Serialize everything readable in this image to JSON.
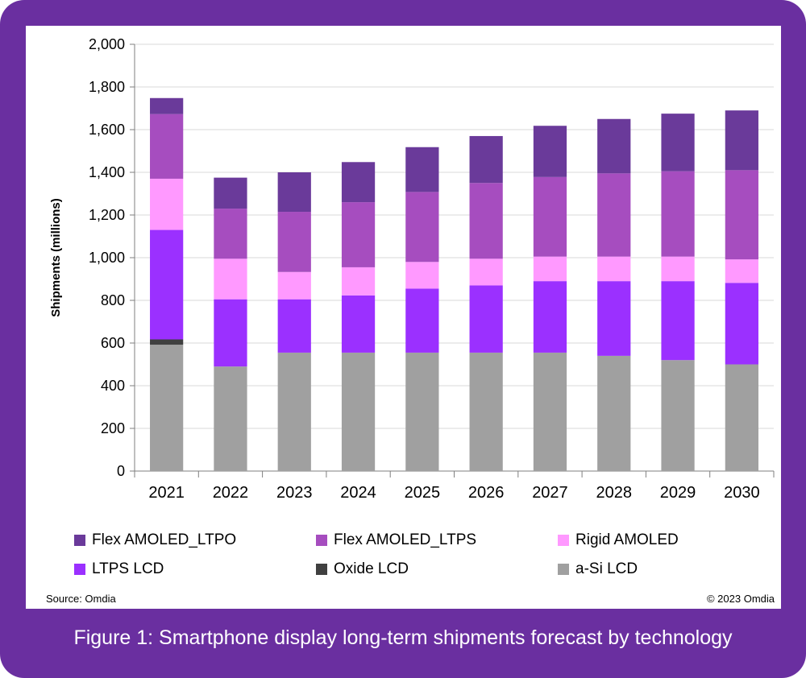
{
  "caption": "Figure 1: Smartphone display long-term shipments forecast by technology",
  "source": "Source: Omdia",
  "copyright": "© 2023 Omdia",
  "chart_data": {
    "type": "bar",
    "stacked": true,
    "title": "",
    "xlabel": "",
    "ylabel": "Shipments (millions)",
    "ylim": [
      0,
      2000
    ],
    "yticks": [
      0,
      200,
      400,
      600,
      800,
      1000,
      1200,
      1400,
      1600,
      1800,
      2000
    ],
    "ytick_labels": [
      "0",
      "200",
      "400",
      "600",
      "800",
      "1,000",
      "1,200",
      "1,400",
      "1,600",
      "1,800",
      "2,000"
    ],
    "grid": true,
    "legend_position": "bottom",
    "categories": [
      "2021",
      "2022",
      "2023",
      "2024",
      "2025",
      "2026",
      "2027",
      "2028",
      "2029",
      "2030"
    ],
    "series": [
      {
        "name": "a-Si LCD",
        "color": "#a0a0a0",
        "values": [
          592,
          490,
          555,
          555,
          555,
          555,
          555,
          540,
          520,
          500
        ]
      },
      {
        "name": "Oxide LCD",
        "color": "#404040",
        "values": [
          25,
          0,
          0,
          0,
          0,
          0,
          0,
          0,
          0,
          0
        ]
      },
      {
        "name": "LTPS LCD",
        "color": "#9b30ff",
        "values": [
          513,
          315,
          250,
          268,
          300,
          315,
          335,
          350,
          370,
          382
        ]
      },
      {
        "name": "Rigid AMOLED",
        "color": "#ff99ff",
        "values": [
          240,
          190,
          128,
          132,
          125,
          125,
          115,
          115,
          115,
          110
        ]
      },
      {
        "name": "Flex AMOLED_LTPS",
        "color": "#a64dbf",
        "values": [
          303,
          235,
          282,
          305,
          328,
          355,
          373,
          390,
          400,
          418
        ]
      },
      {
        "name": "Flex AMOLED_LTPO",
        "color": "#6a3a9a",
        "values": [
          75,
          145,
          185,
          188,
          210,
          220,
          240,
          255,
          270,
          280
        ]
      }
    ],
    "legend_order": [
      "Flex AMOLED_LTPO",
      "Flex AMOLED_LTPS",
      "Rigid AMOLED",
      "LTPS LCD",
      "Oxide LCD",
      "a-Si LCD"
    ]
  }
}
